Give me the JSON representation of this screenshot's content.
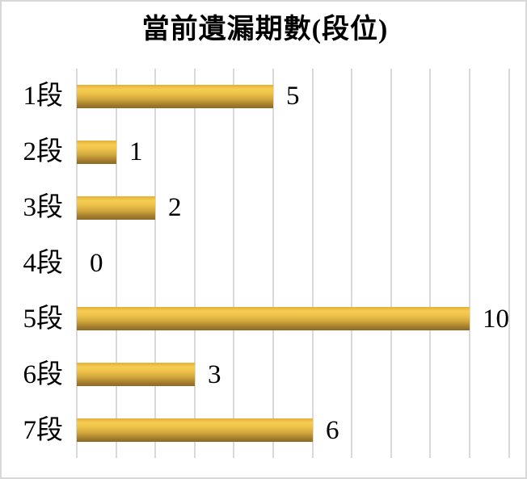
{
  "chart_data": {
    "type": "bar",
    "orientation": "horizontal",
    "title": "當前遺漏期數(段位)",
    "categories": [
      "1段",
      "2段",
      "3段",
      "4段",
      "5段",
      "6段",
      "7段"
    ],
    "values": [
      5,
      1,
      2,
      0,
      10,
      3,
      6
    ],
    "data_labels": [
      "5",
      "1",
      "2",
      "0",
      "10",
      "3",
      "6"
    ],
    "xlabel": "",
    "ylabel": "",
    "xlim": [
      0,
      11
    ],
    "gridline_interval": 1,
    "grid": true,
    "legend": "none",
    "colors": {
      "bar_top": "#f6cc53",
      "bar_bottom": "#8a6a28",
      "gridline": "#d9d9d9",
      "frame_border": "#d8d8d8",
      "text": "#000000",
      "background": "#ffffff"
    }
  }
}
